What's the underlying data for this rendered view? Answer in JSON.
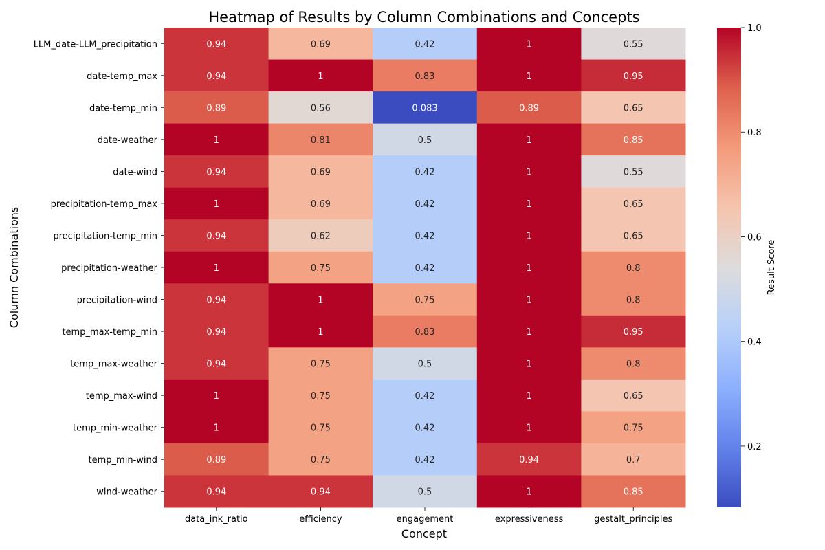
{
  "chart_data": {
    "type": "heatmap",
    "title": "Heatmap of Results by Column Combinations and Concepts",
    "xlabel": "Concept",
    "ylabel": "Column Combinations",
    "colorbar_label": "Result Score",
    "colormap": "coolwarm",
    "vmin": 0.083,
    "vmax": 1.0,
    "colorbar_ticks": [
      0.2,
      0.4,
      0.6,
      0.8,
      1.0
    ],
    "colorbar_tick_labels": [
      "0.2",
      "0.4",
      "0.6",
      "0.8",
      "1.0"
    ],
    "x_categories": [
      "data_ink_ratio",
      "efficiency",
      "engagement",
      "expressiveness",
      "gestalt_principles"
    ],
    "y_categories": [
      "LLM_date-LLM_precipitation",
      "date-temp_max",
      "date-temp_min",
      "date-weather",
      "date-wind",
      "precipitation-temp_max",
      "precipitation-temp_min",
      "precipitation-weather",
      "precipitation-wind",
      "temp_max-temp_min",
      "temp_max-weather",
      "temp_max-wind",
      "temp_min-weather",
      "temp_min-wind",
      "wind-weather"
    ],
    "values": [
      [
        0.94,
        0.69,
        0.42,
        1,
        0.55
      ],
      [
        0.94,
        1,
        0.83,
        1,
        0.95
      ],
      [
        0.89,
        0.56,
        0.083,
        0.89,
        0.65
      ],
      [
        1,
        0.81,
        0.5,
        1,
        0.85
      ],
      [
        0.94,
        0.69,
        0.42,
        1,
        0.55
      ],
      [
        1,
        0.69,
        0.42,
        1,
        0.65
      ],
      [
        0.94,
        0.62,
        0.42,
        1,
        0.65
      ],
      [
        1,
        0.75,
        0.42,
        1,
        0.8
      ],
      [
        0.94,
        1,
        0.75,
        1,
        0.8
      ],
      [
        0.94,
        1,
        0.83,
        1,
        0.95
      ],
      [
        0.94,
        0.75,
        0.5,
        1,
        0.8
      ],
      [
        1,
        0.75,
        0.42,
        1,
        0.65
      ],
      [
        1,
        0.75,
        0.42,
        1,
        0.75
      ],
      [
        0.89,
        0.75,
        0.42,
        0.94,
        0.7
      ],
      [
        0.94,
        0.94,
        0.5,
        1,
        0.85
      ]
    ],
    "value_labels": [
      [
        "0.94",
        "0.69",
        "0.42",
        "1",
        "0.55"
      ],
      [
        "0.94",
        "1",
        "0.83",
        "1",
        "0.95"
      ],
      [
        "0.89",
        "0.56",
        "0.083",
        "0.89",
        "0.65"
      ],
      [
        "1",
        "0.81",
        "0.5",
        "1",
        "0.85"
      ],
      [
        "0.94",
        "0.69",
        "0.42",
        "1",
        "0.55"
      ],
      [
        "1",
        "0.69",
        "0.42",
        "1",
        "0.65"
      ],
      [
        "0.94",
        "0.62",
        "0.42",
        "1",
        "0.65"
      ],
      [
        "1",
        "0.75",
        "0.42",
        "1",
        "0.8"
      ],
      [
        "0.94",
        "1",
        "0.75",
        "1",
        "0.8"
      ],
      [
        "0.94",
        "1",
        "0.83",
        "1",
        "0.95"
      ],
      [
        "0.94",
        "0.75",
        "0.5",
        "1",
        "0.8"
      ],
      [
        "1",
        "0.75",
        "0.42",
        "1",
        "0.65"
      ],
      [
        "1",
        "0.75",
        "0.42",
        "1",
        "0.75"
      ],
      [
        "0.89",
        "0.75",
        "0.42",
        "0.94",
        "0.7"
      ],
      [
        "0.94",
        "0.94",
        "0.5",
        "1",
        "0.85"
      ]
    ]
  }
}
